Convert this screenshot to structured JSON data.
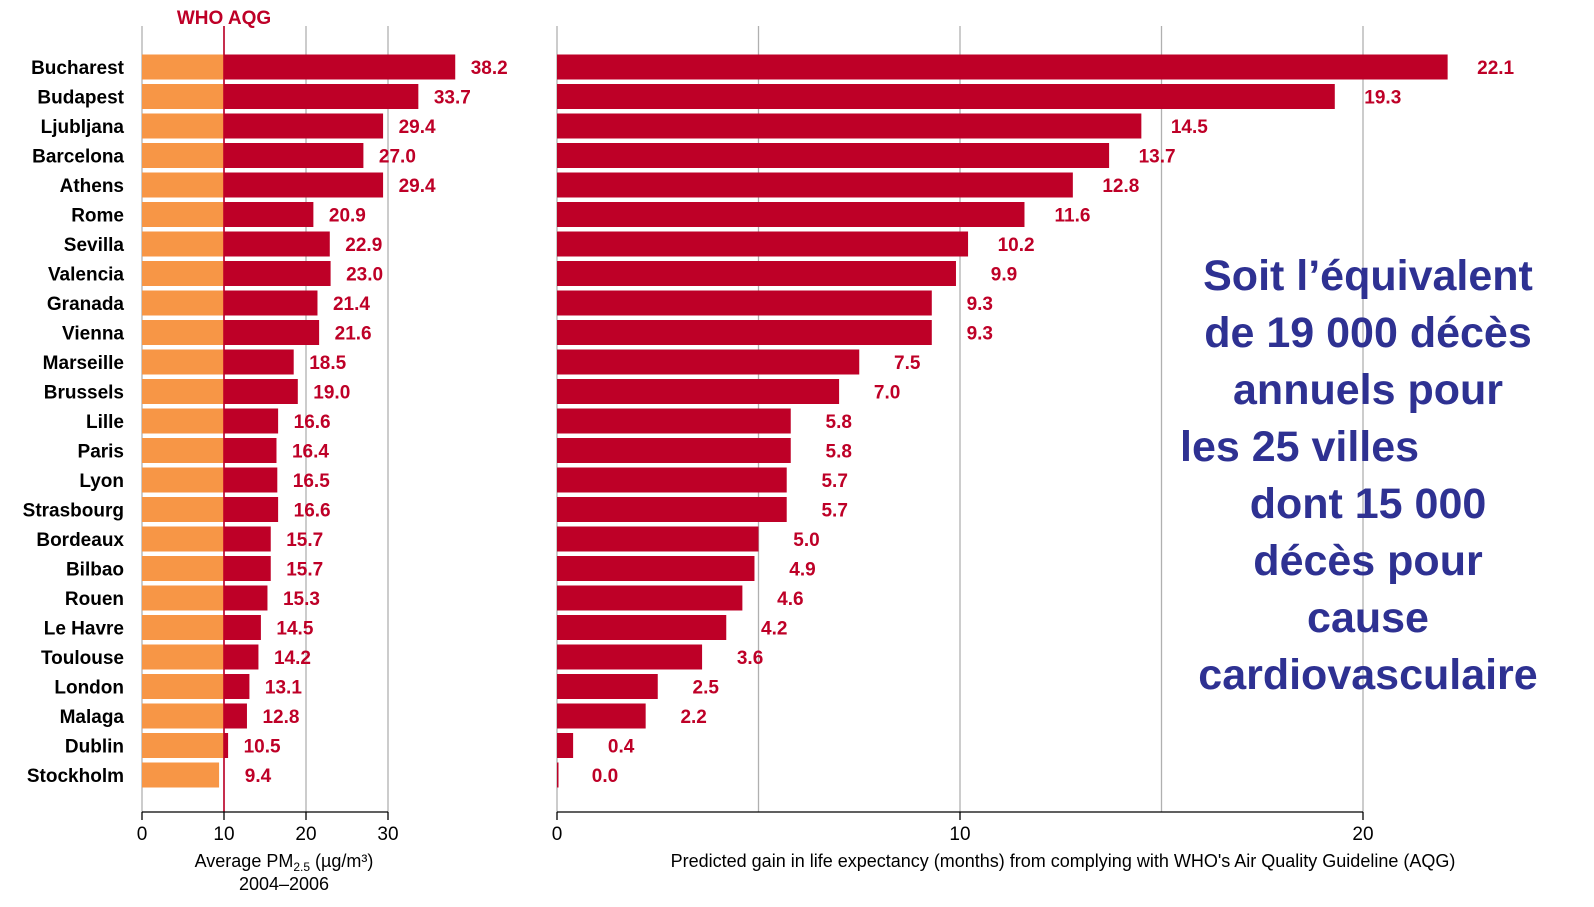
{
  "chart_data": [
    {
      "type": "bar",
      "categories": [
        "Bucharest",
        "Budapest",
        "Ljubljana",
        "Barcelona",
        "Athens",
        "Rome",
        "Sevilla",
        "Valencia",
        "Granada",
        "Vienna",
        "Marseille",
        "Brussels",
        "Lille",
        "Paris",
        "Lyon",
        "Strasbourg",
        "Bordeaux",
        "Bilbao",
        "Rouen",
        "Le Havre",
        "Toulouse",
        "London",
        "Malaga",
        "Dublin",
        "Stockholm"
      ],
      "values": [
        38.2,
        33.7,
        29.4,
        27.0,
        29.4,
        20.9,
        22.9,
        23.0,
        21.4,
        21.6,
        18.5,
        19.0,
        16.6,
        16.4,
        16.5,
        16.6,
        15.7,
        15.7,
        15.3,
        14.5,
        14.2,
        13.1,
        12.8,
        10.5,
        9.4
      ],
      "value_labels": [
        "38.2",
        "33.7",
        "29.4",
        "27.0",
        "29.4",
        "20.9",
        "22.9",
        "23.0",
        "21.4",
        "21.6",
        "18.5",
        "19.0",
        "16.6",
        "16.4",
        "16.5",
        "16.6",
        "15.7",
        "15.7",
        "15.3",
        "14.5",
        "14.2",
        "13.1",
        "12.8",
        "10.5",
        "9.4"
      ],
      "reference_line": {
        "label": "WHO AQG",
        "value": 10
      },
      "xlim": [
        0,
        40
      ],
      "xticks": [
        "0",
        "10",
        "20",
        "30"
      ],
      "xlabel_main": "Average PM",
      "xlabel_sub": "2.5",
      "xlabel_unit": " (µg/m³)",
      "xlabel_period": "2004–2006",
      "below_reference_color": "#f79646",
      "above_reference_color": "#be0027",
      "grid": "vertical"
    },
    {
      "type": "bar",
      "values": [
        22.1,
        19.3,
        14.5,
        13.7,
        12.8,
        11.6,
        10.2,
        9.9,
        9.3,
        9.3,
        7.5,
        7.0,
        5.8,
        5.8,
        5.7,
        5.7,
        5.0,
        4.9,
        4.6,
        4.2,
        3.6,
        2.5,
        2.2,
        0.4,
        0.0
      ],
      "value_labels": [
        "22.1",
        "19.3",
        "14.5",
        "13.7",
        "12.8",
        "11.6",
        "10.2",
        "9.9",
        "9.3",
        "9.3",
        "7.5",
        "7.0",
        "5.8",
        "5.8",
        "5.7",
        "5.7",
        "5.0",
        "4.9",
        "4.6",
        "4.2",
        "3.6",
        "2.5",
        "2.2",
        "0.4",
        "0.0"
      ],
      "xlim": [
        0,
        24.5
      ],
      "xticks": [
        "0",
        "10",
        "20"
      ],
      "xlabel": "Predicted gain in life expectancy (months) from complying with WHO's Air Quality Guideline (AQG)",
      "bar_color": "#be0027",
      "grid": "vertical"
    }
  ],
  "annotation": {
    "lines": [
      "Soit l’équivalent",
      "de 19 000 décès",
      "annuels pour",
      "les 25 villes",
      "dont 15 000",
      "décès pour",
      "cause",
      "cardiovasculaire"
    ],
    "color": "#2e3192"
  },
  "colors": {
    "label_red": "#be0027",
    "grid": "#b0b0b0",
    "axis": "#000000"
  }
}
